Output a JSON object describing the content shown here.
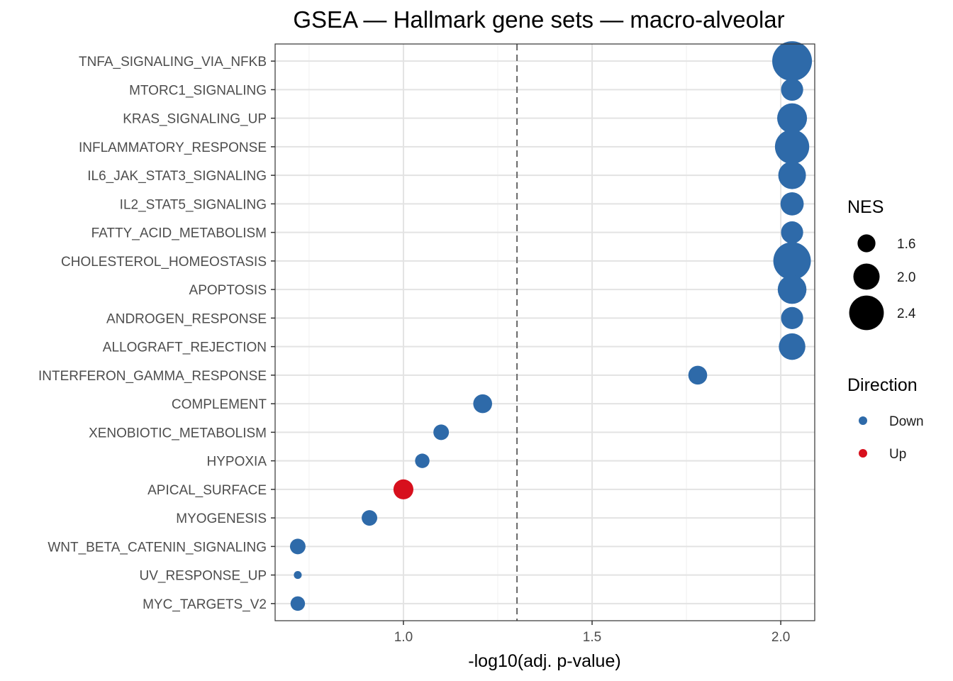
{
  "chart_data": {
    "type": "scatter",
    "title": "GSEA — Hallmark gene sets — macro-alveolar",
    "xlabel": "-log10(adj. p-value)",
    "ylabel": "",
    "xlim": [
      0.66,
      2.09
    ],
    "xticks": [
      1.0,
      1.5,
      2.0
    ],
    "xtick_labels": [
      "1.0",
      "1.5",
      "2.0"
    ],
    "threshold_line": 1.301,
    "grid": true,
    "legend_position": "right",
    "size_legend": {
      "title": "NES",
      "entries": [
        {
          "label": "1.6",
          "value": 1.6
        },
        {
          "label": "2.0",
          "value": 2.0
        },
        {
          "label": "2.4",
          "value": 2.4
        }
      ]
    },
    "color_legend": {
      "title": "Direction",
      "entries": [
        {
          "label": "Down",
          "color": "#2e6aa9"
        },
        {
          "label": "Up",
          "color": "#d7101d"
        }
      ]
    },
    "points": [
      {
        "term": "TNFA_SIGNALING_VIA_NFKB",
        "x": 2.03,
        "nes": 2.55,
        "direction": "Down"
      },
      {
        "term": "MTORC1_SIGNALING",
        "x": 2.03,
        "nes": 1.75,
        "direction": "Down"
      },
      {
        "term": "KRAS_SIGNALING_UP",
        "x": 2.03,
        "nes": 2.1,
        "direction": "Down"
      },
      {
        "term": "INFLAMMATORY_RESPONSE",
        "x": 2.03,
        "nes": 2.3,
        "direction": "Down"
      },
      {
        "term": "IL6_JAK_STAT3_SIGNALING",
        "x": 2.03,
        "nes": 2.0,
        "direction": "Down"
      },
      {
        "term": "IL2_STAT5_SIGNALING",
        "x": 2.03,
        "nes": 1.8,
        "direction": "Down"
      },
      {
        "term": "FATTY_ACID_METABOLISM",
        "x": 2.03,
        "nes": 1.75,
        "direction": "Down"
      },
      {
        "term": "CHOLESTEROL_HOMEOSTASIS",
        "x": 2.03,
        "nes": 2.45,
        "direction": "Down"
      },
      {
        "term": "APOPTOSIS",
        "x": 2.03,
        "nes": 2.05,
        "direction": "Down"
      },
      {
        "term": "ANDROGEN_RESPONSE",
        "x": 2.03,
        "nes": 1.75,
        "direction": "Down"
      },
      {
        "term": "ALLOGRAFT_REJECTION",
        "x": 2.03,
        "nes": 1.95,
        "direction": "Down"
      },
      {
        "term": "INTERFERON_GAMMA_RESPONSE",
        "x": 1.78,
        "nes": 1.6,
        "direction": "Down"
      },
      {
        "term": "COMPLEMENT",
        "x": 1.21,
        "nes": 1.6,
        "direction": "Down"
      },
      {
        "term": "XENOBIOTIC_METABOLISM",
        "x": 1.1,
        "nes": 1.45,
        "direction": "Down"
      },
      {
        "term": "HYPOXIA",
        "x": 1.05,
        "nes": 1.4,
        "direction": "Down"
      },
      {
        "term": "APICAL_SURFACE",
        "x": 1.0,
        "nes": 1.65,
        "direction": "Up"
      },
      {
        "term": "MYOGENESIS",
        "x": 0.91,
        "nes": 1.45,
        "direction": "Down"
      },
      {
        "term": "WNT_BETA_CATENIN_SIGNALING",
        "x": 0.72,
        "nes": 1.45,
        "direction": "Down"
      },
      {
        "term": "UV_RESPONSE_UP",
        "x": 0.72,
        "nes": 1.1,
        "direction": "Down"
      },
      {
        "term": "MYC_TARGETS_V2",
        "x": 0.72,
        "nes": 1.4,
        "direction": "Down"
      }
    ]
  }
}
